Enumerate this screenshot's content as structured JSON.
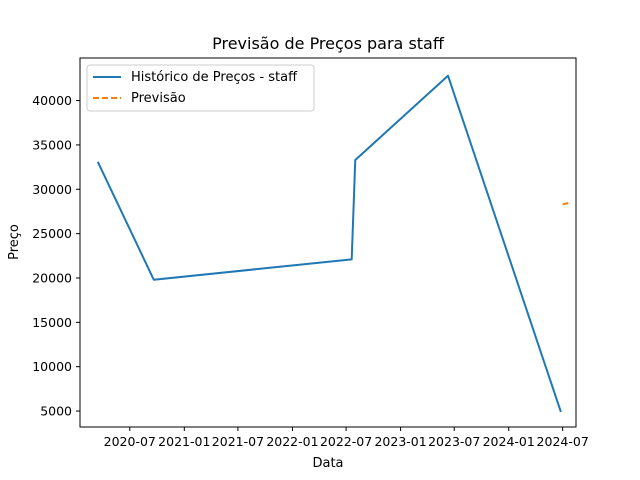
{
  "chart_data": {
    "type": "line",
    "title": "Previsão de Preços para staff",
    "xlabel": "Data",
    "ylabel": "Preço",
    "x_ticks": [
      "2020-07",
      "2021-01",
      "2021-07",
      "2022-01",
      "2022-07",
      "2023-01",
      "2023-07",
      "2024-01",
      "2024-07"
    ],
    "y_ticks": [
      5000,
      10000,
      15000,
      20000,
      25000,
      30000,
      35000,
      40000
    ],
    "xlim": [
      "2020-01-15",
      "2024-08-15"
    ],
    "ylim": [
      3200,
      44800
    ],
    "grid": false,
    "legend_position": "upper-left",
    "series": [
      {
        "name": "Histórico de Preços - staff",
        "color": "#1f77b4",
        "style": "solid",
        "points": [
          {
            "x": "2020-03-15",
            "y": 33100
          },
          {
            "x": "2020-09-20",
            "y": 19800
          },
          {
            "x": "2022-07-20",
            "y": 22100
          },
          {
            "x": "2022-08-01",
            "y": 33300
          },
          {
            "x": "2023-06-10",
            "y": 42800
          },
          {
            "x": "2024-06-25",
            "y": 4900
          }
        ]
      },
      {
        "name": "Previsão",
        "color": "#ff7f0e",
        "style": "dashed",
        "points": [
          {
            "x": "2024-07-01",
            "y": 28300
          },
          {
            "x": "2024-07-20",
            "y": 28450
          }
        ]
      }
    ]
  }
}
